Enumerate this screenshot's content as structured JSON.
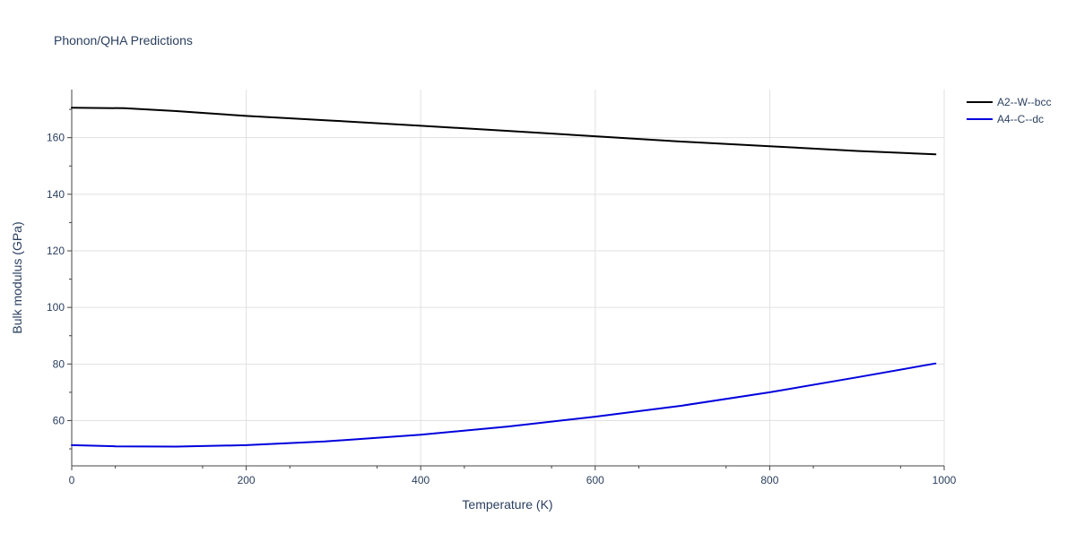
{
  "chart_data": {
    "type": "line",
    "title": "Phonon/QHA Predictions",
    "xlabel": "Temperature (K)",
    "ylabel": "Bulk modulus (GPa)",
    "xlim": [
      0,
      1000
    ],
    "ylim": [
      44,
      177
    ],
    "x_ticks": [
      0,
      200,
      400,
      600,
      800,
      1000
    ],
    "y_ticks": [
      60,
      80,
      100,
      120,
      140,
      160
    ],
    "grid": true,
    "legend_position": "top-right",
    "series": [
      {
        "name": "A2--W--bcc",
        "color": "#000000",
        "x": [
          0,
          60,
          120,
          200,
          300,
          400,
          500,
          600,
          700,
          800,
          900,
          990
        ],
        "y": [
          170.6,
          170.4,
          169.4,
          167.7,
          166.0,
          164.2,
          162.4,
          160.5,
          158.6,
          157.0,
          155.3,
          154.1
        ]
      },
      {
        "name": "A4--C--dc",
        "color": "#0000dd",
        "x": [
          0,
          50,
          120,
          200,
          290,
          400,
          500,
          600,
          700,
          800,
          900,
          990
        ],
        "y": [
          51.3,
          50.9,
          50.8,
          51.3,
          52.6,
          55.0,
          57.9,
          61.4,
          65.3,
          70.0,
          75.3,
          80.2
        ]
      }
    ]
  }
}
